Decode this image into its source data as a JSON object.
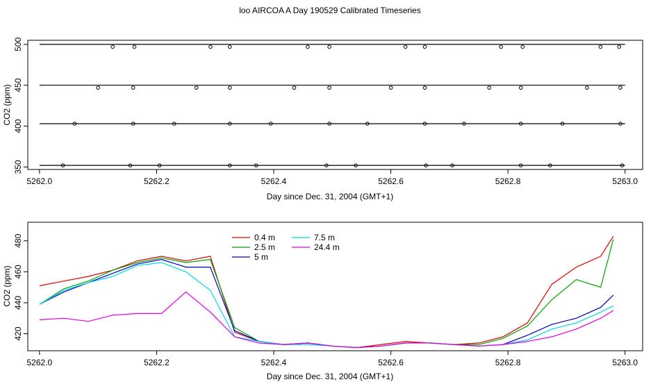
{
  "figure": {
    "title": "loo AIRCOA A  Day 190529  Calibrated Timeseries"
  },
  "chart_data": [
    {
      "type": "scatter",
      "xlabel": "Day since Dec. 31, 2004 (GMT+1)",
      "ylabel": "CO2 (ppm)",
      "xlim": [
        5261.98,
        5263.03
      ],
      "ylim": [
        347,
        505
      ],
      "xticks": [
        5262.0,
        5262.2,
        5262.4,
        5262.6,
        5262.8,
        5263.0
      ],
      "xtick_labels": [
        "5262.0",
        "5262.2",
        "5262.4",
        "5262.6",
        "5262.8",
        "5263.0"
      ],
      "yticks": [
        350,
        400,
        450,
        500
      ],
      "ytick_labels": [
        "350",
        "400",
        "450",
        "500"
      ],
      "grid": false,
      "legend": null,
      "x": [
        5262.0,
        5262.0417,
        5262.0833,
        5262.125,
        5262.1667,
        5262.2083,
        5262.25,
        5262.2917,
        5262.3333,
        5262.375,
        5262.4167,
        5262.4583,
        5262.5,
        5262.5417,
        5262.5833,
        5262.625,
        5262.6667,
        5262.7083,
        5262.75,
        5262.7917,
        5262.8333,
        5262.875,
        5262.9167,
        5262.9583,
        5263.0
      ],
      "series": [
        {
          "y": [
            500,
            500,
            500,
            500,
            500,
            500,
            500,
            500,
            500,
            500,
            500,
            500,
            500,
            500,
            500,
            500,
            500,
            500,
            500,
            500,
            500,
            500,
            500,
            500,
            500
          ],
          "color": "#000000"
        },
        {
          "y": [
            450,
            450,
            450,
            450,
            450,
            450,
            450,
            450,
            450,
            450,
            450,
            450,
            450,
            450,
            450,
            450,
            450,
            450,
            450,
            450,
            450,
            450,
            450,
            450,
            450
          ],
          "color": "#000000"
        },
        {
          "y": [
            403,
            403,
            403,
            403,
            403,
            403,
            403,
            403,
            403,
            403,
            403,
            403,
            403,
            403,
            403,
            403,
            403,
            403,
            403,
            403,
            403,
            403,
            403,
            403,
            403
          ],
          "color": "#000000"
        },
        {
          "y": [
            352,
            352,
            352,
            352,
            352,
            352,
            352,
            352,
            352,
            352,
            352,
            352,
            352,
            352,
            352,
            352,
            352,
            352,
            352,
            352,
            352,
            352,
            352,
            352,
            352
          ],
          "color": "#000000"
        }
      ],
      "points": [
        [
          5262.125,
          497
        ],
        [
          5262.162,
          497
        ],
        [
          5262.292,
          497
        ],
        [
          5262.325,
          497
        ],
        [
          5262.458,
          497
        ],
        [
          5262.495,
          497
        ],
        [
          5262.625,
          497
        ],
        [
          5262.658,
          497
        ],
        [
          5262.788,
          497
        ],
        [
          5262.825,
          497
        ],
        [
          5262.958,
          497
        ],
        [
          5262.99,
          497
        ],
        [
          5262.1,
          447
        ],
        [
          5262.16,
          447
        ],
        [
          5262.268,
          447
        ],
        [
          5262.325,
          447
        ],
        [
          5262.435,
          447
        ],
        [
          5262.495,
          447
        ],
        [
          5262.6,
          447
        ],
        [
          5262.658,
          447
        ],
        [
          5262.768,
          447
        ],
        [
          5262.822,
          447
        ],
        [
          5262.935,
          447
        ],
        [
          5262.992,
          447
        ],
        [
          5262.06,
          403
        ],
        [
          5262.16,
          403
        ],
        [
          5262.23,
          403
        ],
        [
          5262.325,
          403
        ],
        [
          5262.395,
          403
        ],
        [
          5262.495,
          403
        ],
        [
          5262.56,
          403
        ],
        [
          5262.658,
          403
        ],
        [
          5262.725,
          403
        ],
        [
          5262.822,
          403
        ],
        [
          5262.893,
          403
        ],
        [
          5262.992,
          403
        ],
        [
          5262.04,
          352
        ],
        [
          5262.155,
          352
        ],
        [
          5262.205,
          352
        ],
        [
          5262.325,
          352
        ],
        [
          5262.37,
          352
        ],
        [
          5262.49,
          352
        ],
        [
          5262.54,
          352
        ],
        [
          5262.66,
          352
        ],
        [
          5262.705,
          352
        ],
        [
          5262.822,
          352
        ],
        [
          5262.872,
          352
        ],
        [
          5262.995,
          352
        ]
      ]
    },
    {
      "type": "line",
      "xlabel": "Day since Dec. 31, 2004 (GMT+1)",
      "ylabel": "CO2 (ppm)",
      "xlim": [
        5261.98,
        5263.03
      ],
      "ylim": [
        409,
        492
      ],
      "xticks": [
        5262.0,
        5262.2,
        5262.4,
        5262.6,
        5262.8,
        5263.0
      ],
      "xtick_labels": [
        "5262.0",
        "5262.2",
        "5262.4",
        "5262.6",
        "5262.8",
        "5263.0"
      ],
      "yticks": [
        420,
        440,
        460,
        480
      ],
      "ytick_labels": [
        "420",
        "440",
        "460",
        "480"
      ],
      "grid": false,
      "legend": "top-left",
      "x": [
        5262.0,
        5262.0417,
        5262.0833,
        5262.125,
        5262.1667,
        5262.2083,
        5262.25,
        5262.2917,
        5262.3333,
        5262.375,
        5262.4167,
        5262.4583,
        5262.5,
        5262.5417,
        5262.5833,
        5262.625,
        5262.6667,
        5262.7083,
        5262.75,
        5262.7917,
        5262.8333,
        5262.875,
        5262.9167,
        5262.9583,
        5262.98
      ],
      "series": [
        {
          "name": "0.4 m",
          "color": "#e00000",
          "values": [
            451,
            454,
            457,
            461,
            467,
            470,
            467,
            470,
            421,
            415,
            413,
            414,
            412,
            411,
            413,
            415,
            414,
            413,
            414,
            418,
            427,
            452,
            463,
            470,
            483
          ]
        },
        {
          "name": "2.5 m",
          "color": "#00a000",
          "values": [
            439,
            449,
            454,
            461,
            466,
            469,
            466,
            468,
            424,
            415,
            413,
            414,
            412,
            411,
            412,
            414,
            414,
            413,
            413,
            417,
            425,
            442,
            455,
            450,
            481
          ]
        },
        {
          "name": "5 m",
          "color": "#0000c0",
          "values": [
            439,
            447,
            453,
            459,
            465,
            468,
            463,
            463,
            422,
            415,
            413,
            414,
            412,
            411,
            412,
            414,
            414,
            413,
            412,
            413,
            419,
            426,
            430,
            437,
            445
          ]
        },
        {
          "name": "7.5 m",
          "color": "#00d8e8",
          "values": [
            439,
            448,
            453,
            457,
            464,
            466,
            460,
            448,
            418,
            415,
            413,
            413,
            412,
            411,
            412,
            414,
            414,
            413,
            412,
            413,
            416,
            423,
            427,
            434,
            438
          ]
        },
        {
          "name": "24.4 m",
          "color": "#e000e0",
          "values": [
            429,
            430,
            428,
            432,
            433,
            433,
            447,
            434,
            418,
            414,
            413,
            414,
            412,
            411,
            412,
            414,
            414,
            413,
            412,
            413,
            415,
            418,
            423,
            430,
            435
          ]
        }
      ]
    }
  ]
}
